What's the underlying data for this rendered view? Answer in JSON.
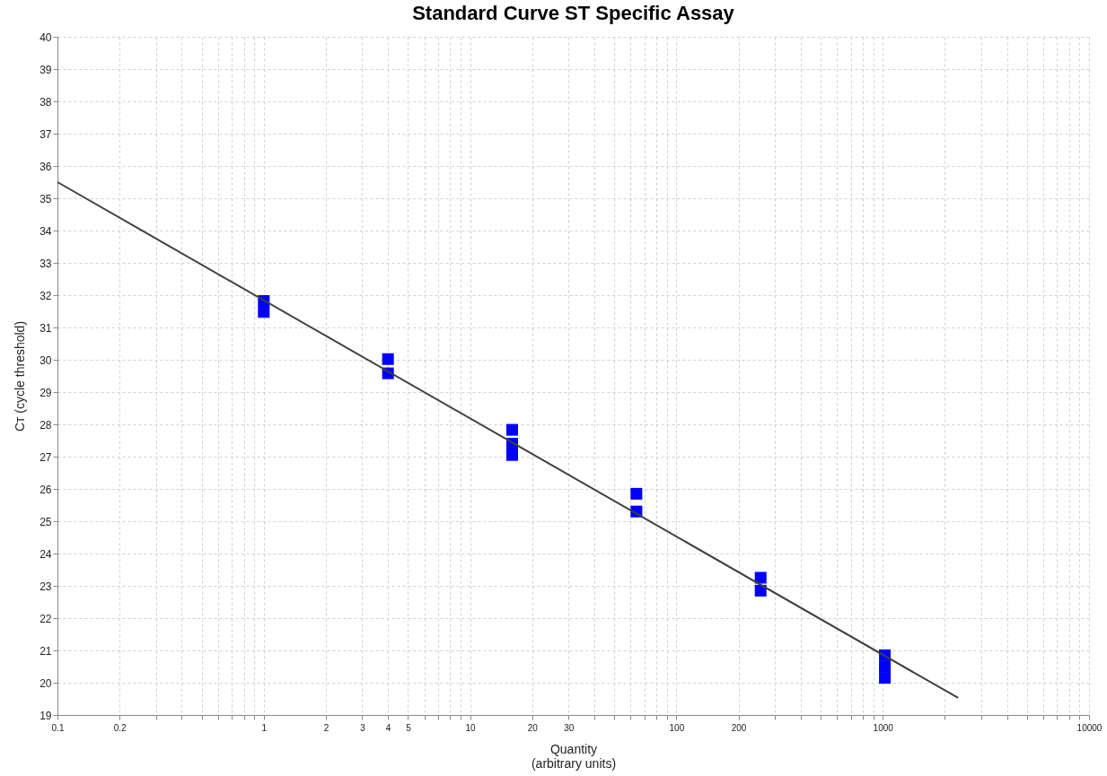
{
  "chart_data": {
    "type": "scatter",
    "title": "Standard Curve ST Specific Assay",
    "xlabel": "Quantity\n(arbitrary units)",
    "ylabel": "Cᴛ  (cycle threshold)",
    "log": "x",
    "grid": true,
    "xlim": [
      0.1,
      10000
    ],
    "ylim": [
      19,
      40
    ],
    "xticks": [
      0.1,
      0.2,
      {
        "value": 0.3,
        "label": null
      },
      {
        "value": 0.4,
        "label": null
      },
      {
        "value": 0.5,
        "label": null
      },
      {
        "value": 0.6,
        "label": null
      },
      {
        "value": 0.7,
        "label": null
      },
      {
        "value": 0.8,
        "label": null
      },
      {
        "value": 0.9,
        "label": null
      },
      1,
      2,
      3,
      4,
      5,
      {
        "value": 6,
        "label": null
      },
      {
        "value": 7,
        "label": null
      },
      {
        "value": 8,
        "label": null
      },
      {
        "value": 9,
        "label": null
      },
      10,
      20,
      30,
      {
        "value": 40,
        "label": null
      },
      {
        "value": 50,
        "label": null
      },
      {
        "value": 60,
        "label": null
      },
      {
        "value": 70,
        "label": null
      },
      {
        "value": 80,
        "label": null
      },
      {
        "value": 90,
        "label": null
      },
      100,
      200,
      {
        "value": 300,
        "label": null
      },
      {
        "value": 400,
        "label": null
      },
      {
        "value": 500,
        "label": null
      },
      {
        "value": 600,
        "label": null
      },
      {
        "value": 700,
        "label": null
      },
      {
        "value": 800,
        "label": null
      },
      {
        "value": 900,
        "label": null
      },
      1000,
      {
        "value": 2000,
        "label": null
      },
      {
        "value": 3000,
        "label": null
      },
      {
        "value": 4000,
        "label": null
      },
      {
        "value": 5000,
        "label": null
      },
      {
        "value": 6000,
        "label": null
      },
      {
        "value": 7000,
        "label": null
      },
      {
        "value": 8000,
        "label": null
      },
      {
        "value": 9000,
        "label": null
      },
      10000
    ],
    "yticks": [
      19,
      20,
      21,
      22,
      23,
      24,
      25,
      26,
      27,
      28,
      29,
      30,
      31,
      32,
      33,
      34,
      35,
      36,
      37,
      38,
      39,
      40
    ],
    "series": [
      {
        "color": "#0000ff",
        "marker": "square",
        "x": [
          1,
          1,
          4,
          4,
          16,
          16,
          16,
          64,
          64,
          256,
          256,
          1024,
          1024,
          1024
        ],
        "values": [
          31.82,
          31.48,
          30.02,
          29.58,
          27.83,
          27.4,
          27.05,
          25.85,
          25.3,
          23.25,
          22.85,
          20.85,
          20.5,
          20.15
        ]
      },
      {
        "type": "line",
        "color": "#404040",
        "marker": "none",
        "line_style": "solid",
        "x": [
          0.1,
          2320
        ],
        "values": [
          35.5,
          19.53
        ]
      }
    ]
  }
}
